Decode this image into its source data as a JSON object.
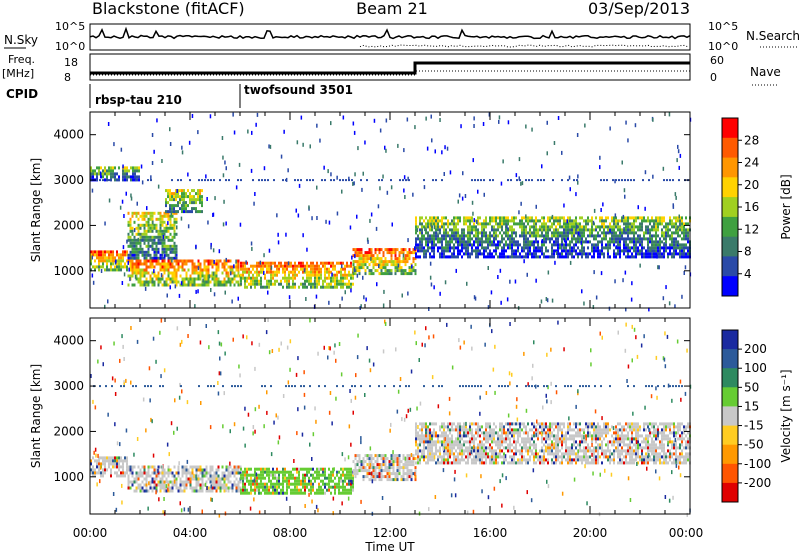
{
  "header": {
    "station": "Blackstone (fitACF)",
    "beam": "Beam 21",
    "date": "03/Sep/2013"
  },
  "summary_panels": {
    "nsky_label": "N.Sky",
    "nsearch_label": "N.Search",
    "nsky_ticks": [
      "10^5",
      "10^0"
    ],
    "nsky_right_ticks": [
      "10^5",
      "10^0"
    ],
    "freq_label_line1": "Freq.",
    "freq_label_line2": "[MHz]",
    "freq_ticks": [
      "18",
      "8"
    ],
    "nave_label": "Nave",
    "nave_ticks": [
      "60",
      "0"
    ],
    "cpid_label": "CPID",
    "cpid_segments": [
      {
        "label": "rbsp-tau 210",
        "start_hour": 0
      },
      {
        "label": "twofsound 3501",
        "start_hour": 6
      }
    ]
  },
  "axes": {
    "xlabel": "Time UT",
    "x_ticks": [
      "00:00",
      "04:00",
      "08:00",
      "12:00",
      "16:00",
      "20:00",
      "00:00"
    ],
    "ylabel": "Slant Range [km]",
    "y_ticks": [
      "4000",
      "3000",
      "2000",
      "1000"
    ]
  },
  "power_colorbar": {
    "label": "Power [dB]",
    "ticks": [
      "28",
      "24",
      "20",
      "16",
      "12",
      "8",
      "4"
    ],
    "colors": [
      "#ff0000",
      "#ff5a00",
      "#ff9600",
      "#ffd200",
      "#a0d020",
      "#3fa040",
      "#3a7a6a",
      "#2a4aa8",
      "#0000ff"
    ]
  },
  "velocity_colorbar": {
    "label": "Velocity [m s⁻¹]",
    "ticks": [
      "200",
      "100",
      "50",
      "15",
      "-15",
      "-50",
      "-100",
      "-200"
    ],
    "colors": [
      "#1a2aa0",
      "#2c5a9a",
      "#2e8a60",
      "#66cc33",
      "#c8c8c8",
      "#ffcc22",
      "#ff9900",
      "#ff5500",
      "#e00000"
    ]
  },
  "chart_data": [
    {
      "type": "heatmap",
      "title": "Power",
      "xlabel": "Time UT",
      "ylabel": "Slant Range [km]",
      "xlim": [
        0,
        24
      ],
      "ylim": [
        180,
        4500
      ],
      "colorbar_range": [
        3,
        30
      ],
      "echo_regions": [
        {
          "t0": 0.0,
          "t1": 1.5,
          "r0": 1050,
          "r1": 1450,
          "value": 24
        },
        {
          "t0": 1.5,
          "t1": 3.5,
          "r0": 1250,
          "r1": 2300,
          "value": 16
        },
        {
          "t0": 3.0,
          "t1": 4.5,
          "r0": 2300,
          "r1": 2800,
          "value": 16
        },
        {
          "t0": 0.0,
          "t1": 2.0,
          "r0": 3000,
          "r1": 3300,
          "value": 8
        },
        {
          "t0": 1.5,
          "t1": 6.0,
          "r0": 700,
          "r1": 1250,
          "value": 24
        },
        {
          "t0": 6.0,
          "t1": 10.5,
          "r0": 650,
          "r1": 1200,
          "value": 22
        },
        {
          "t0": 10.5,
          "t1": 13.0,
          "r0": 950,
          "r1": 1500,
          "value": 22
        },
        {
          "t0": 13.0,
          "t1": 24.0,
          "r0": 1300,
          "r1": 2200,
          "value": 14
        }
      ]
    },
    {
      "type": "heatmap",
      "title": "Velocity",
      "xlabel": "Time UT",
      "ylabel": "Slant Range [km]",
      "xlim": [
        0,
        24
      ],
      "ylim": [
        180,
        4500
      ],
      "colorbar_range": [
        -200,
        200
      ],
      "echo_regions": [
        {
          "t0": 0.0,
          "t1": 1.5,
          "r0": 1050,
          "r1": 1450,
          "value": 0
        },
        {
          "t0": 1.5,
          "t1": 6.0,
          "r0": 700,
          "r1": 1250,
          "value": 0
        },
        {
          "t0": 6.0,
          "t1": 10.5,
          "r0": 650,
          "r1": 1200,
          "value": 30
        },
        {
          "t0": 10.5,
          "t1": 13.0,
          "r0": 950,
          "r1": 1500,
          "value": 0
        },
        {
          "t0": 13.0,
          "t1": 24.0,
          "r0": 1300,
          "r1": 2200,
          "value": 0
        }
      ]
    }
  ]
}
